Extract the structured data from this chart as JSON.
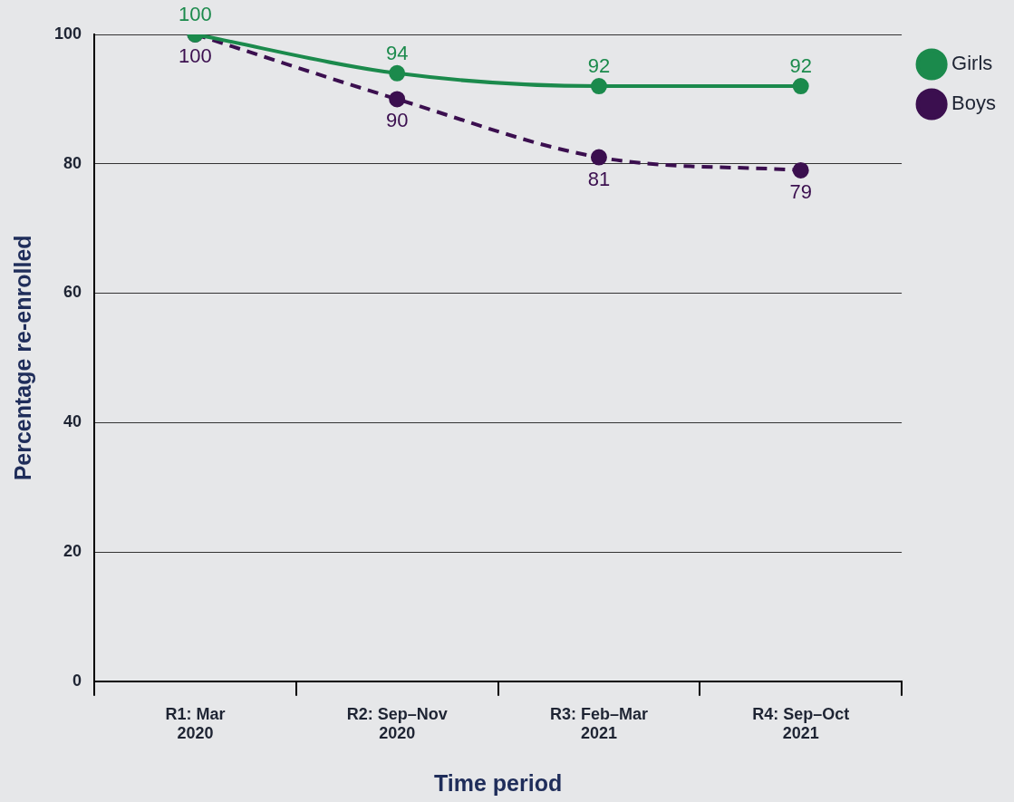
{
  "chart_data": {
    "type": "line",
    "xlabel": "Time period",
    "ylabel": "Percentage re-enrolled",
    "categories": [
      "R1: Mar 2020",
      "R2: Sep–Nov 2020",
      "R3: Feb–Mar 2021",
      "R4: Sep–Oct 2021"
    ],
    "series": [
      {
        "name": "Girls",
        "color": "#1b8a4c",
        "values": [
          100,
          94,
          92,
          92
        ],
        "line_style": "solid"
      },
      {
        "name": "Boys",
        "color": "#3b0f4f",
        "values": [
          100,
          90,
          81,
          79
        ],
        "line_style": "dashed"
      }
    ],
    "ylim": [
      0,
      100
    ],
    "yticks": [
      0,
      20,
      40,
      60,
      80,
      100
    ],
    "grid": "y",
    "legend": "top right",
    "marker": "circle",
    "data_labels": true
  }
}
